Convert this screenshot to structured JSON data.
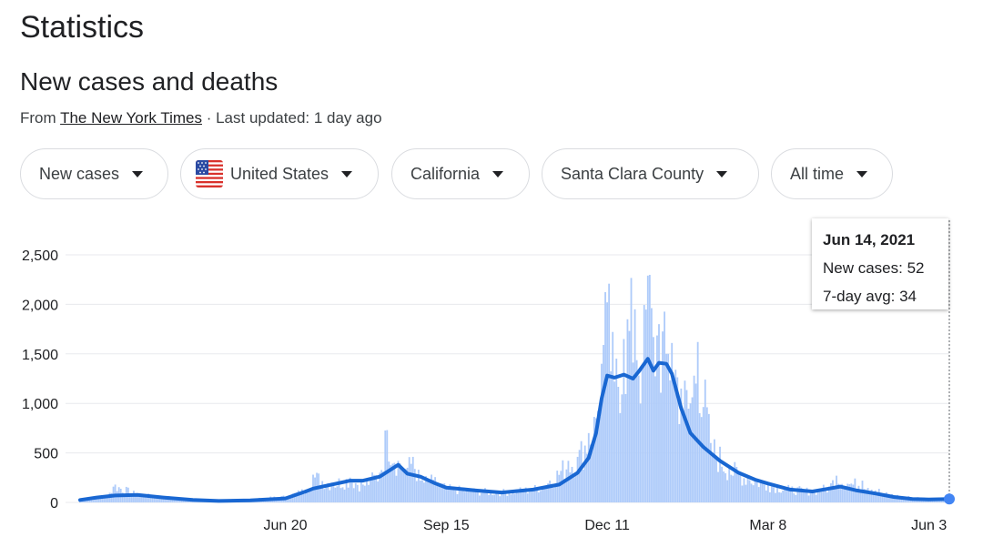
{
  "page_title": "Statistics",
  "section_title": "New cases and deaths",
  "source": {
    "prefix": "From ",
    "link_text": "The New York Times",
    "updated": " · Last updated: 1 day ago"
  },
  "filters": [
    {
      "label": "New cases",
      "icon": null
    },
    {
      "label": "United States",
      "icon": "us-flag-icon"
    },
    {
      "label": "California",
      "icon": null
    },
    {
      "label": "Santa Clara County",
      "icon": null
    },
    {
      "label": "All time",
      "icon": null
    }
  ],
  "tooltip": {
    "date": "Jun 14, 2021",
    "cases_label": "New cases: 52",
    "avg_label": "7-day avg: 34"
  },
  "colors": {
    "bar": "#aecbfa",
    "line": "#1967d2",
    "grid": "#e8eaed",
    "marker": "#4285f4"
  },
  "chart_data": {
    "type": "bar",
    "title": "",
    "xlabel": "",
    "ylabel": "",
    "ylim": [
      0,
      2500
    ],
    "yticks": [
      0,
      500,
      1000,
      1500,
      2000,
      2500
    ],
    "ytick_labels": [
      "0",
      "500",
      "1,000",
      "1,500",
      "2,000",
      "2,500"
    ],
    "xticks": [
      {
        "date": "2020-06-20",
        "label": "Jun 20"
      },
      {
        "date": "2020-09-15",
        "label": "Sep 15"
      },
      {
        "date": "2020-12-11",
        "label": "Dec 11"
      },
      {
        "date": "2021-03-08",
        "label": "Mar 8"
      },
      {
        "date": "2021-06-03",
        "label": "Jun 3"
      }
    ],
    "x_range": [
      "2020-03-01",
      "2021-06-14"
    ],
    "series": [
      {
        "name": "New cases",
        "style": "bars",
        "points": [
          [
            "2020-03-01",
            20
          ],
          [
            "2020-03-15",
            60
          ],
          [
            "2020-03-20",
            180
          ],
          [
            "2020-04-01",
            80
          ],
          [
            "2020-04-15",
            60
          ],
          [
            "2020-05-01",
            30
          ],
          [
            "2020-05-15",
            20
          ],
          [
            "2020-06-01",
            30
          ],
          [
            "2020-06-20",
            60
          ],
          [
            "2020-07-01",
            130
          ],
          [
            "2020-07-05",
            280
          ],
          [
            "2020-07-15",
            200
          ],
          [
            "2020-07-25",
            250
          ],
          [
            "2020-08-01",
            180
          ],
          [
            "2020-08-05",
            240
          ],
          [
            "2020-08-10",
            300
          ],
          [
            "2020-08-14",
            730
          ],
          [
            "2020-08-20",
            420
          ],
          [
            "2020-08-25",
            350
          ],
          [
            "2020-08-28",
            460
          ],
          [
            "2020-09-01",
            220
          ],
          [
            "2020-09-08",
            230
          ],
          [
            "2020-09-15",
            150
          ],
          [
            "2020-10-01",
            120
          ],
          [
            "2020-10-15",
            110
          ],
          [
            "2020-11-01",
            140
          ],
          [
            "2020-11-10",
            220
          ],
          [
            "2020-11-20",
            420
          ],
          [
            "2020-11-25",
            460
          ],
          [
            "2020-12-01",
            700
          ],
          [
            "2020-12-05",
            850
          ],
          [
            "2020-12-08",
            1400
          ],
          [
            "2020-12-11",
            2020
          ],
          [
            "2020-12-15",
            1220
          ],
          [
            "2020-12-20",
            1650
          ],
          [
            "2020-12-26",
            1950
          ],
          [
            "2020-12-30",
            1360
          ],
          [
            "2021-01-02",
            2290
          ],
          [
            "2021-01-05",
            1670
          ],
          [
            "2021-01-08",
            1800
          ],
          [
            "2021-01-12",
            1500
          ],
          [
            "2021-01-15",
            1610
          ],
          [
            "2021-01-20",
            1150
          ],
          [
            "2021-01-25",
            1000
          ],
          [
            "2021-01-29",
            1620
          ],
          [
            "2021-02-05",
            600
          ],
          [
            "2021-02-15",
            360
          ],
          [
            "2021-02-25",
            260
          ],
          [
            "2021-03-08",
            190
          ],
          [
            "2021-03-20",
            140
          ],
          [
            "2021-04-01",
            120
          ],
          [
            "2021-04-10",
            160
          ],
          [
            "2021-04-14",
            270
          ],
          [
            "2021-04-22",
            190
          ],
          [
            "2021-04-28",
            220
          ],
          [
            "2021-05-10",
            90
          ],
          [
            "2021-05-20",
            60
          ],
          [
            "2021-06-03",
            40
          ],
          [
            "2021-06-14",
            52
          ]
        ]
      },
      {
        "name": "7-day avg",
        "style": "line",
        "points": [
          [
            "2020-03-01",
            25
          ],
          [
            "2020-03-10",
            50
          ],
          [
            "2020-03-20",
            70
          ],
          [
            "2020-04-01",
            75
          ],
          [
            "2020-04-15",
            50
          ],
          [
            "2020-05-01",
            25
          ],
          [
            "2020-05-15",
            15
          ],
          [
            "2020-06-01",
            20
          ],
          [
            "2020-06-20",
            40
          ],
          [
            "2020-07-01",
            110
          ],
          [
            "2020-07-05",
            140
          ],
          [
            "2020-07-15",
            180
          ],
          [
            "2020-07-25",
            220
          ],
          [
            "2020-08-01",
            220
          ],
          [
            "2020-08-10",
            260
          ],
          [
            "2020-08-20",
            380
          ],
          [
            "2020-08-25",
            290
          ],
          [
            "2020-09-01",
            260
          ],
          [
            "2020-09-08",
            200
          ],
          [
            "2020-09-15",
            150
          ],
          [
            "2020-10-01",
            120
          ],
          [
            "2020-10-15",
            100
          ],
          [
            "2020-11-01",
            130
          ],
          [
            "2020-11-15",
            180
          ],
          [
            "2020-11-25",
            300
          ],
          [
            "2020-12-01",
            450
          ],
          [
            "2020-12-05",
            700
          ],
          [
            "2020-12-08",
            1050
          ],
          [
            "2020-12-11",
            1280
          ],
          [
            "2020-12-15",
            1260
          ],
          [
            "2020-12-20",
            1290
          ],
          [
            "2020-12-25",
            1250
          ],
          [
            "2020-12-28",
            1320
          ],
          [
            "2021-01-02",
            1450
          ],
          [
            "2021-01-05",
            1330
          ],
          [
            "2021-01-08",
            1410
          ],
          [
            "2021-01-12",
            1400
          ],
          [
            "2021-01-15",
            1300
          ],
          [
            "2021-01-20",
            950
          ],
          [
            "2021-01-25",
            700
          ],
          [
            "2021-02-01",
            560
          ],
          [
            "2021-02-10",
            420
          ],
          [
            "2021-02-20",
            300
          ],
          [
            "2021-03-01",
            230
          ],
          [
            "2021-03-08",
            190
          ],
          [
            "2021-03-20",
            130
          ],
          [
            "2021-04-01",
            110
          ],
          [
            "2021-04-10",
            140
          ],
          [
            "2021-04-16",
            160
          ],
          [
            "2021-04-25",
            120
          ],
          [
            "2021-05-05",
            90
          ],
          [
            "2021-05-15",
            55
          ],
          [
            "2021-05-25",
            35
          ],
          [
            "2021-06-03",
            30
          ],
          [
            "2021-06-14",
            34
          ]
        ]
      }
    ]
  }
}
